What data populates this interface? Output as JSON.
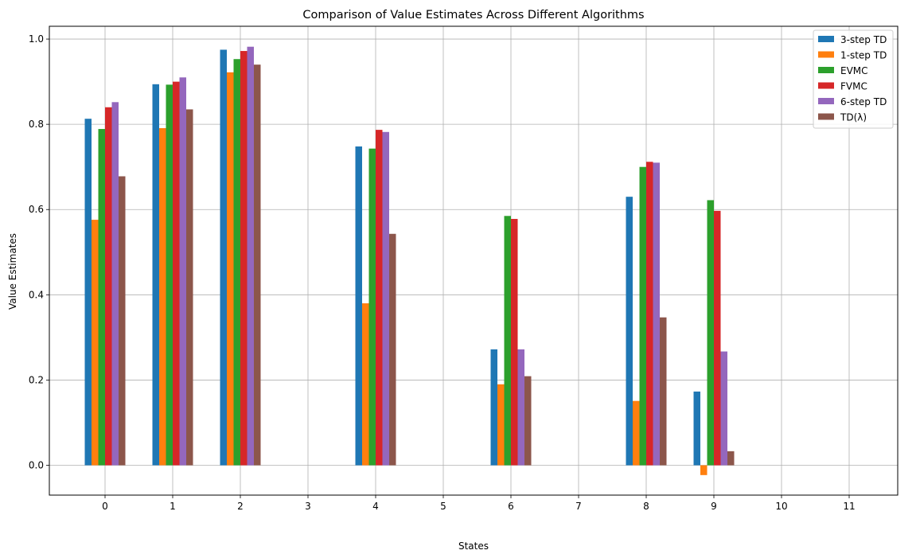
{
  "chart_data": {
    "type": "bar",
    "title": "Comparison of Value Estimates Across Different Algorithms",
    "xlabel": "States",
    "ylabel": "Value Estimates",
    "categories": [
      "0",
      "1",
      "2",
      "3",
      "4",
      "5",
      "6",
      "7",
      "8",
      "9",
      "10",
      "11"
    ],
    "ylim": [
      -0.07,
      1.03
    ],
    "yticks": [
      "0.0",
      "0.2",
      "0.4",
      "0.6",
      "0.8",
      "1.0"
    ],
    "grid": true,
    "legend_position": "top-right",
    "series": [
      {
        "name": "3-step TD",
        "color": "#1f77b4",
        "values": [
          0.813,
          0.894,
          0.975,
          null,
          0.748,
          null,
          0.272,
          null,
          0.63,
          0.173,
          null,
          null
        ]
      },
      {
        "name": "1-step TD",
        "color": "#ff7f0e",
        "values": [
          0.576,
          0.791,
          0.922,
          null,
          0.38,
          null,
          0.19,
          null,
          0.151,
          -0.023,
          null,
          null
        ]
      },
      {
        "name": "EVMC",
        "color": "#2ca02c",
        "values": [
          0.789,
          0.893,
          0.953,
          null,
          0.743,
          null,
          0.585,
          null,
          0.7,
          0.622,
          null,
          null
        ]
      },
      {
        "name": "FVMC",
        "color": "#d62728",
        "values": [
          0.84,
          0.9,
          0.972,
          null,
          0.787,
          null,
          0.578,
          null,
          0.712,
          0.597,
          null,
          null
        ]
      },
      {
        "name": "6-step TD",
        "color": "#9467bd",
        "values": [
          0.852,
          0.91,
          0.982,
          null,
          0.782,
          null,
          0.272,
          null,
          0.71,
          0.267,
          null,
          null
        ]
      },
      {
        "name": "TD(λ)",
        "color": "#8c564b",
        "values": [
          0.678,
          0.835,
          0.94,
          null,
          0.543,
          null,
          0.209,
          null,
          0.347,
          0.033,
          null,
          null
        ]
      }
    ]
  }
}
